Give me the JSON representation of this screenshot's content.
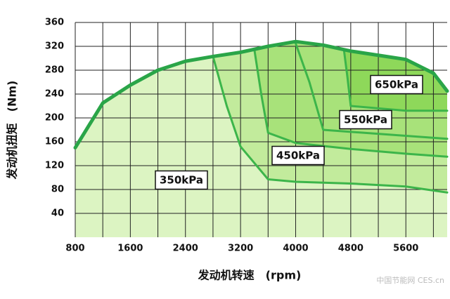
{
  "chart_data": {
    "type": "area",
    "x_label": "发动机转速　(rpm)",
    "y_label": "发动机扭矩　(Nm)",
    "xlim": [
      800,
      6200
    ],
    "ylim": [
      0,
      360
    ],
    "xticks": [
      800,
      1600,
      2400,
      3200,
      4000,
      4800,
      5600
    ],
    "yticks": [
      40,
      80,
      120,
      160,
      200,
      240,
      280,
      320,
      360
    ],
    "grid": true,
    "line_color": "#3cb54a",
    "outline_color": "#2aa548",
    "series": [
      {
        "name": "350kPa",
        "color": "#dcf4c2",
        "x": [
          800,
          1200,
          1600,
          2000,
          2400,
          2800,
          3200,
          3600,
          4000,
          4400,
          4800,
          5200,
          5600,
          6000,
          6200
        ],
        "values": [
          150,
          225,
          255,
          280,
          295,
          303,
          310,
          320,
          328,
          322,
          312,
          305,
          298,
          275,
          245
        ]
      },
      {
        "name": "450kPa",
        "color": "#c2eb9c",
        "x": [
          2800,
          3000,
          3200,
          3600,
          4000,
          4800,
          5600,
          6200
        ],
        "values": [
          303,
          220,
          152,
          97,
          93,
          90,
          85,
          75
        ]
      },
      {
        "name": "550kPa",
        "color": "#a8e27a",
        "x": [
          3400,
          3500,
          3600,
          4000,
          4800,
          5600,
          6200
        ],
        "values": [
          315,
          240,
          175,
          158,
          148,
          140,
          135
        ]
      },
      {
        "name": "550kPa",
        "color": "#a8e27a",
        "x": [
          4000,
          4200,
          4400,
          5000,
          5600,
          6200
        ],
        "values": [
          325,
          260,
          180,
          175,
          170,
          165
        ]
      },
      {
        "name": "650kPa",
        "color": "#8ed85a",
        "x": [
          4700,
          4750,
          4800,
          5600,
          6200
        ],
        "values": [
          315,
          270,
          220,
          212,
          212
        ]
      }
    ]
  },
  "watermark": "中国节能网 CES.cn"
}
